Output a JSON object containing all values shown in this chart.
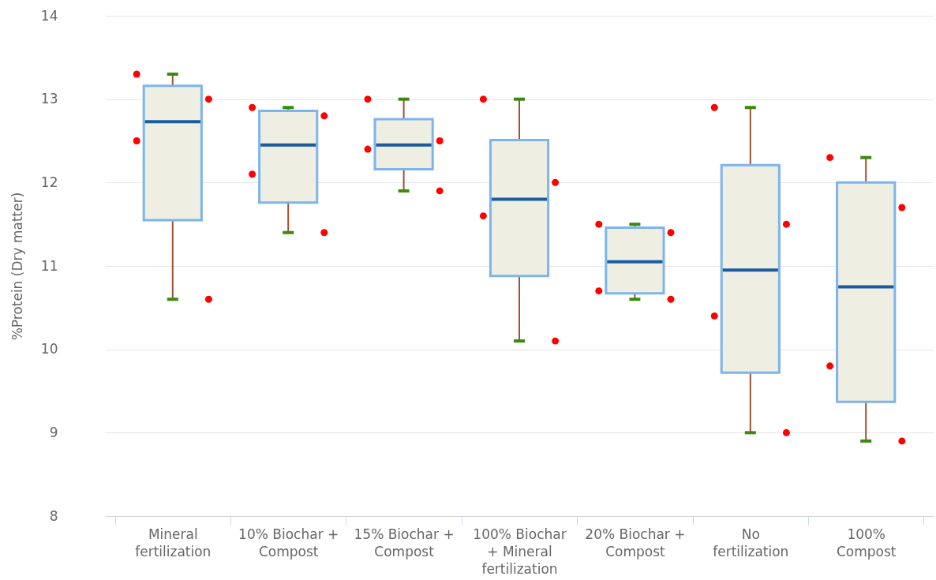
{
  "chart_data": {
    "type": "box",
    "ylabel": "%Protein (Dry matter)",
    "categories": [
      "Mineral fertilization",
      "10% Biochar + Compost",
      "15% Biochar + Compost",
      "100% Biochar + Mineral fertilization",
      "20% Biochar + Compost",
      "No fertilization",
      "100% Compost"
    ],
    "ylim": [
      8,
      14
    ],
    "yticks": [
      8,
      9,
      10,
      11,
      12,
      13,
      14
    ],
    "grid": "y",
    "series": [
      {
        "color": "#7cb5ec",
        "boxes": [
          {
            "low": 10.6,
            "q1": 11.55,
            "median": 12.73,
            "q3": 13.16,
            "high": 13.3
          },
          {
            "low": 11.4,
            "q1": 11.76,
            "median": 12.45,
            "q3": 12.86,
            "high": 12.9
          },
          {
            "low": 11.9,
            "q1": 12.16,
            "median": 12.45,
            "q3": 12.76,
            "high": 13.0
          },
          {
            "low": 10.1,
            "q1": 10.88,
            "median": 11.8,
            "q3": 12.51,
            "high": 13.0
          },
          {
            "low": 10.6,
            "q1": 10.67,
            "median": 11.05,
            "q3": 11.46,
            "high": 11.5
          },
          {
            "low": 9.0,
            "q1": 9.72,
            "median": 10.95,
            "q3": 12.21,
            "high": 12.9
          },
          {
            "low": 8.9,
            "q1": 9.37,
            "median": 10.75,
            "q3": 12.0,
            "high": 12.3
          }
        ]
      },
      {
        "type": "scatter",
        "color": "#ff0000",
        "marker": "circle",
        "x": [
          "Mineral fertilization",
          "Mineral fertilization",
          "Mineral fertilization",
          "Mineral fertilization",
          "10% Biochar + Compost",
          "10% Biochar + Compost",
          "10% Biochar + Compost",
          "10% Biochar + Compost",
          "15% Biochar + Compost",
          "15% Biochar + Compost",
          "15% Biochar + Compost",
          "15% Biochar + Compost",
          "100% Biochar + Mineral fertilization",
          "100% Biochar + Mineral fertilization",
          "100% Biochar + Mineral fertilization",
          "100% Biochar + Mineral fertilization",
          "20% Biochar + Compost",
          "20% Biochar + Compost",
          "20% Biochar + Compost",
          "20% Biochar + Compost",
          "No fertilization",
          "No fertilization",
          "No fertilization",
          "No fertilization",
          "100% Compost",
          "100% Compost",
          "100% Compost",
          "100% Compost"
        ],
        "values": [
          13.3,
          13.0,
          12.5,
          10.6,
          12.9,
          12.8,
          12.1,
          11.4,
          13.0,
          12.5,
          12.4,
          11.9,
          13.0,
          12.0,
          11.6,
          10.1,
          11.5,
          11.4,
          10.7,
          10.6,
          12.9,
          11.5,
          10.4,
          9.0,
          12.3,
          11.7,
          9.8,
          8.9
        ]
      }
    ]
  }
}
